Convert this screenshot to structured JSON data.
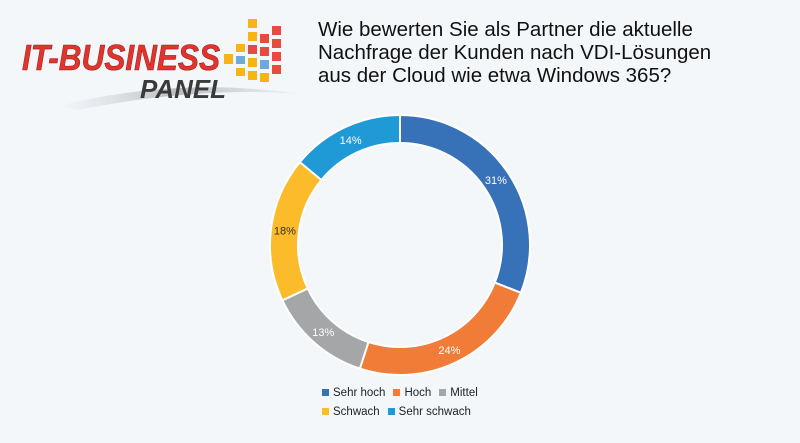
{
  "logo": {
    "line1": "IT-BUSINESS",
    "line2": "PANEL"
  },
  "question": {
    "lines": [
      "Wie bewerten Sie als Partner die aktuelle",
      "Nachfrage der Kunden nach VDI-Lösungen",
      "aus der Cloud wie etwa Windows 365?"
    ]
  },
  "chart_data": {
    "type": "pie",
    "variant": "donut",
    "title": "Wie bewerten Sie als Partner die aktuelle Nachfrage der Kunden nach VDI-Lösungen aus der Cloud wie etwa Windows 365?",
    "categories": [
      "Sehr hoch",
      "Hoch",
      "Mittel",
      "Schwach",
      "Sehr schwach"
    ],
    "values": [
      31,
      24,
      13,
      18,
      14
    ],
    "labels": [
      "31%",
      "24%",
      "13%",
      "18%",
      "14%"
    ],
    "colors": [
      "#3771b8",
      "#f07c38",
      "#a5a6a8",
      "#fbbb2a",
      "#1f9ad6"
    ],
    "legend_position": "bottom"
  }
}
